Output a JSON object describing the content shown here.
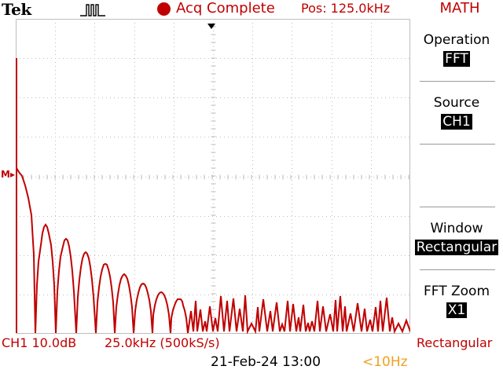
{
  "header": {
    "brand": "Tek",
    "trigger_icon": "trigger-pulse-icon",
    "acq_status": "Acq Complete",
    "position": "Pos: 125.0kHz",
    "menu_title": "MATH"
  },
  "menu": {
    "items": [
      {
        "label": "Operation",
        "value": "FFT"
      },
      {
        "label": "Source",
        "value": "CH1"
      },
      {
        "label": "Window",
        "value": "Rectangular"
      },
      {
        "label": "FFT Zoom",
        "value": "X1"
      }
    ]
  },
  "footer": {
    "channel": "CH1 10.0dB",
    "timebase": "25.0kHz (500kS/s)",
    "window": "Rectangular",
    "datetime": "21-Feb-24 13:00",
    "frequency": "<10Hz"
  },
  "markers": {
    "math_marker": "M"
  },
  "colors": {
    "trace": "#c00000",
    "status_text": "#c00000",
    "frequency_text": "#f0a020",
    "grid": "#bdbdbd"
  }
}
